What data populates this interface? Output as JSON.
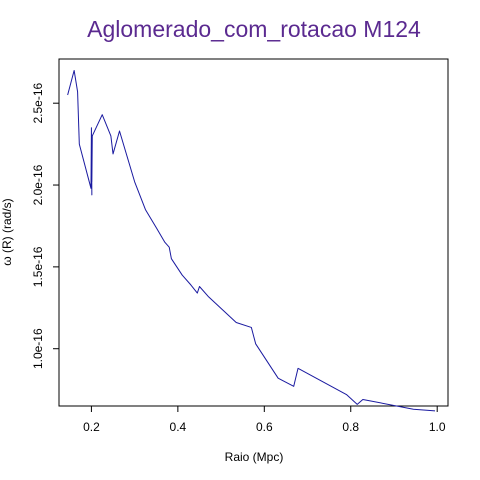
{
  "chart_data": {
    "type": "line",
    "title": "Aglomerado_com_rotacao M124",
    "xlabel": "Raio (Mpc)",
    "ylabel": "ω  (R) (rad/s)",
    "xlim": [
      0.125,
      1.025
    ],
    "ylim": [
      6.5e-17,
      2.77e-16
    ],
    "x_ticks": [
      0.2,
      0.4,
      0.6,
      0.8,
      1.0
    ],
    "x_tick_labels": [
      "0.2",
      "0.4",
      "0.6",
      "0.8",
      "1.0"
    ],
    "y_ticks": [
      1e-16,
      1.5e-16,
      2e-16,
      2.5e-16
    ],
    "y_tick_labels": [
      "1.0e-16",
      "1.5e-16",
      "2.0e-16",
      "2.5e-16"
    ],
    "grid": false,
    "legend": "none",
    "colors": {
      "line": "#1a1aa0",
      "title": "#5b2a90",
      "axes": "#000000",
      "background": "#ffffff"
    },
    "series": [
      {
        "x": [
          0.145,
          0.16,
          0.168,
          0.172,
          0.199,
          0.2,
          0.201,
          0.2,
          0.201,
          0.202,
          0.225,
          0.245,
          0.25,
          0.265,
          0.3,
          0.325,
          0.35,
          0.37,
          0.38,
          0.385,
          0.41,
          0.43,
          0.445,
          0.45,
          0.47,
          0.535,
          0.57,
          0.58,
          0.632,
          0.668,
          0.678,
          0.79,
          0.815,
          0.828,
          0.945,
          0.995
        ],
        "y": [
          2.55e-16,
          2.7e-16,
          2.57e-16,
          2.25e-16,
          1.98e-16,
          2.35e-16,
          1.94e-16,
          2.3e-16,
          2.02e-16,
          2.3e-16,
          2.43e-16,
          2.3e-16,
          2.19e-16,
          2.33e-16,
          2.02e-16,
          1.85e-16,
          1.74e-16,
          1.65e-16,
          1.62e-16,
          1.55e-16,
          1.45e-16,
          1.39e-16,
          1.34e-16,
          1.38e-16,
          1.32e-16,
          1.16e-16,
          1.13e-16,
          1.03e-16,
          8.2e-17,
          7.7e-17,
          8.8e-17,
          7.2e-17,
          6.6e-17,
          6.9e-17,
          6.3e-17,
          6.2e-17
        ]
      }
    ]
  }
}
